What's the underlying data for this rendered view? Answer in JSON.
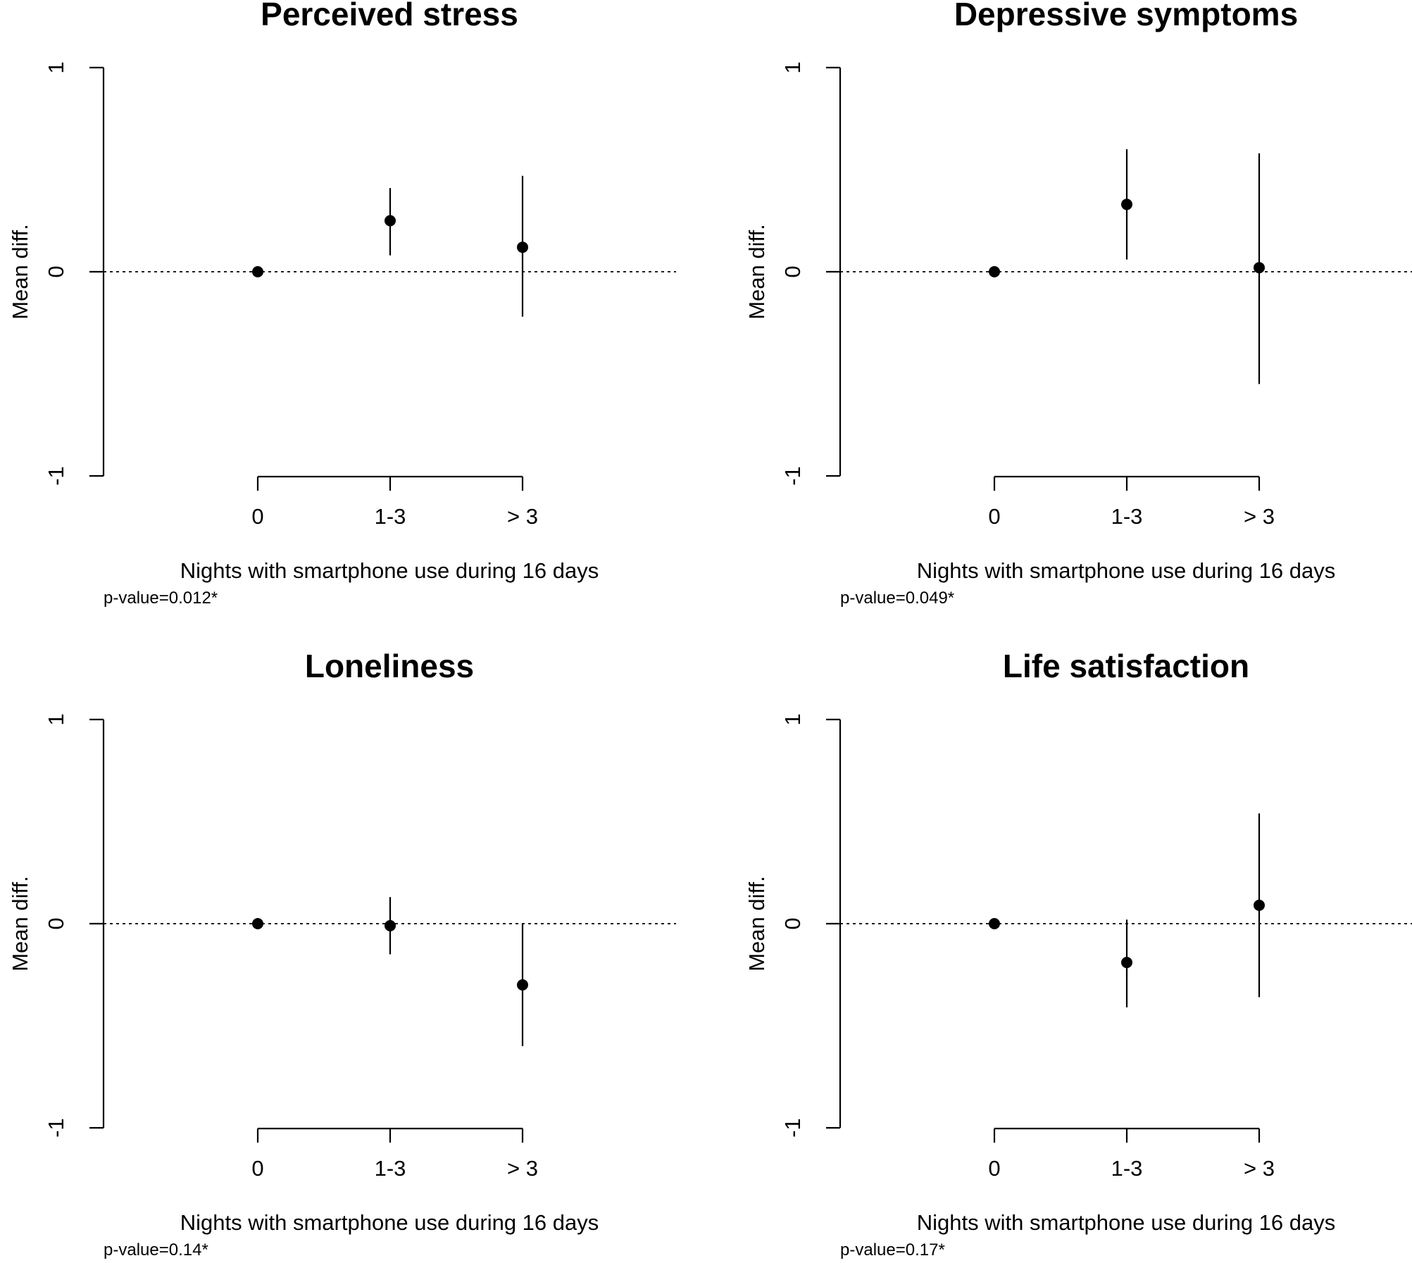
{
  "chart_data": [
    {
      "type": "scatter",
      "title": "Perceived stress",
      "xlabel": "Nights with smartphone use during 16 days",
      "ylabel": "Mean diff.",
      "categories": [
        "0",
        "1-3",
        "> 3"
      ],
      "values": [
        0,
        0.25,
        0.12
      ],
      "ci_lower": [
        0,
        0.08,
        -0.22
      ],
      "ci_upper": [
        0,
        0.41,
        0.47
      ],
      "ylim": [
        -1,
        1
      ],
      "yticks": [
        "-1",
        "0",
        "1"
      ],
      "reference_line": 0,
      "note": "p-value=0.012*"
    },
    {
      "type": "scatter",
      "title": "Depressive symptoms",
      "xlabel": "Nights with smartphone use during 16 days",
      "ylabel": "Mean diff.",
      "categories": [
        "0",
        "1-3",
        "> 3"
      ],
      "values": [
        0,
        0.33,
        0.02
      ],
      "ci_lower": [
        0,
        0.06,
        -0.55
      ],
      "ci_upper": [
        0,
        0.6,
        0.58
      ],
      "ylim": [
        -1,
        1
      ],
      "yticks": [
        "-1",
        "0",
        "1"
      ],
      "reference_line": 0,
      "note": "p-value=0.049*"
    },
    {
      "type": "scatter",
      "title": "Loneliness",
      "xlabel": "Nights with smartphone use during 16 days",
      "ylabel": "Mean diff.",
      "categories": [
        "0",
        "1-3",
        "> 3"
      ],
      "values": [
        0,
        -0.01,
        -0.3
      ],
      "ci_lower": [
        0,
        -0.15,
        -0.6
      ],
      "ci_upper": [
        0,
        0.13,
        0
      ],
      "ylim": [
        -1,
        1
      ],
      "yticks": [
        "-1",
        "0",
        "1"
      ],
      "reference_line": 0,
      "note": "p-value=0.14*"
    },
    {
      "type": "scatter",
      "title": "Life satisfaction",
      "xlabel": "Nights with smartphone use during 16 days",
      "ylabel": "Mean diff.",
      "categories": [
        "0",
        "1-3",
        "> 3"
      ],
      "values": [
        0,
        -0.19,
        0.09
      ],
      "ci_lower": [
        0,
        -0.41,
        -0.36
      ],
      "ci_upper": [
        0,
        0.02,
        0.54
      ],
      "ylim": [
        -1,
        1
      ],
      "yticks": [
        "-1",
        "0",
        "1"
      ],
      "reference_line": 0,
      "note": "p-value=0.17*"
    }
  ]
}
